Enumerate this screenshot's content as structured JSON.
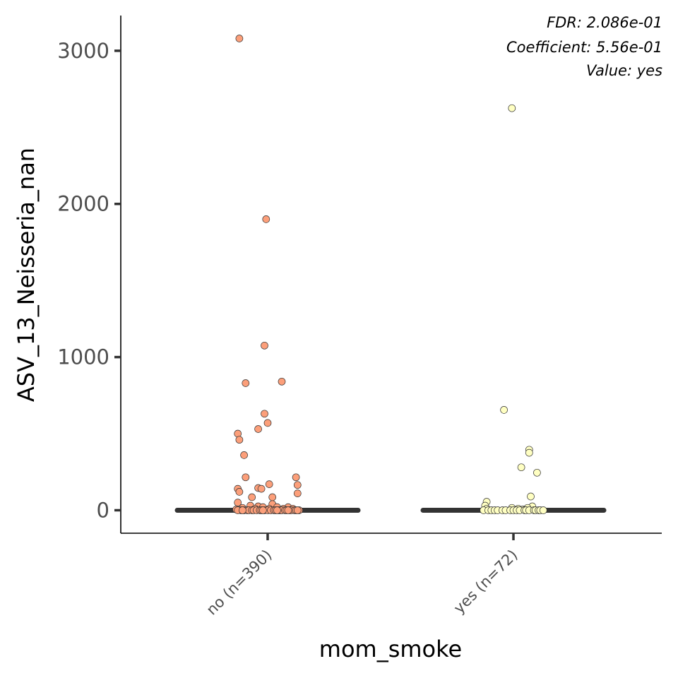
{
  "chart_data": {
    "type": "scatter",
    "title": "",
    "xlabel": "mom_smoke",
    "ylabel": "ASV_13_Neisseria_nan",
    "ylim": [
      -150,
      3230
    ],
    "yticks": [
      0,
      1000,
      2000,
      3000
    ],
    "ytick_labels": [
      "0",
      "1000",
      "2000",
      "3000"
    ],
    "grid": false,
    "legend": "none",
    "categories": [
      "no (n=390)",
      "yes (n=72)"
    ],
    "annotations": [
      "FDR: 2.086e-01",
      "Coefficient: 5.56e-01",
      "Value: yes"
    ],
    "median_color": "#333333",
    "series": [
      {
        "category": "no (n=390)",
        "color": "#fc9f7a",
        "median": 0,
        "points": [
          [
            -0.18,
            3080
          ],
          [
            -0.01,
            1900
          ],
          [
            -0.02,
            1075
          ],
          [
            -0.14,
            830
          ],
          [
            0.09,
            840
          ],
          [
            -0.02,
            630
          ],
          [
            -0.0,
            570
          ],
          [
            -0.06,
            530
          ],
          [
            -0.19,
            500
          ],
          [
            -0.18,
            460
          ],
          [
            -0.15,
            360
          ],
          [
            -0.14,
            215
          ],
          [
            0.18,
            215
          ],
          [
            0.01,
            170
          ],
          [
            0.19,
            165
          ],
          [
            -0.19,
            140
          ],
          [
            -0.06,
            145
          ],
          [
            -0.04,
            140
          ],
          [
            -0.18,
            120
          ],
          [
            0.19,
            110
          ],
          [
            -0.1,
            85
          ],
          [
            0.03,
            85
          ],
          [
            -0.19,
            50
          ],
          [
            0.03,
            40
          ],
          [
            -0.11,
            30
          ],
          [
            -0.06,
            25
          ],
          [
            -0.03,
            20
          ],
          [
            0.06,
            20
          ],
          [
            0.13,
            20
          ],
          [
            -0.16,
            15
          ],
          [
            -0.08,
            10
          ],
          [
            0.01,
            10
          ],
          [
            0.1,
            10
          ],
          [
            0.16,
            10
          ],
          [
            -0.2,
            5
          ],
          [
            -0.17,
            0
          ],
          [
            -0.15,
            0
          ],
          [
            -0.13,
            0
          ],
          [
            -0.12,
            0
          ],
          [
            -0.1,
            0
          ],
          [
            -0.09,
            0
          ],
          [
            -0.07,
            0
          ],
          [
            -0.05,
            0
          ],
          [
            -0.04,
            0
          ],
          [
            -0.02,
            0
          ],
          [
            0.0,
            0
          ],
          [
            0.02,
            0
          ],
          [
            0.04,
            0
          ],
          [
            0.05,
            0
          ],
          [
            0.07,
            0
          ],
          [
            0.08,
            0
          ],
          [
            0.09,
            0
          ],
          [
            0.11,
            0
          ],
          [
            0.12,
            0
          ],
          [
            0.14,
            0
          ],
          [
            0.15,
            0
          ],
          [
            0.17,
            0
          ],
          [
            0.18,
            0
          ],
          [
            0.2,
            0
          ],
          [
            -0.19,
            0
          ],
          [
            -0.16,
            0
          ],
          [
            -0.03,
            0
          ],
          [
            0.06,
            0
          ],
          [
            0.13,
            0
          ],
          [
            0.19,
            0
          ]
        ]
      },
      {
        "category": "yes (n=72)",
        "color": "#ffffc2",
        "median": 0,
        "points": [
          [
            -0.01,
            2625
          ],
          [
            -0.06,
            655
          ],
          [
            0.1,
            395
          ],
          [
            0.1,
            375
          ],
          [
            0.05,
            280
          ],
          [
            0.15,
            245
          ],
          [
            0.11,
            90
          ],
          [
            -0.17,
            55
          ],
          [
            -0.18,
            30
          ],
          [
            0.12,
            25
          ],
          [
            -0.01,
            15
          ],
          [
            0.09,
            15
          ],
          [
            -0.17,
            10
          ],
          [
            0.03,
            10
          ],
          [
            0.06,
            5
          ],
          [
            -0.19,
            0
          ],
          [
            -0.16,
            0
          ],
          [
            -0.14,
            0
          ],
          [
            -0.12,
            0
          ],
          [
            -0.1,
            0
          ],
          [
            -0.07,
            0
          ],
          [
            -0.05,
            0
          ],
          [
            -0.02,
            0
          ],
          [
            0.0,
            0
          ],
          [
            0.02,
            0
          ],
          [
            0.04,
            0
          ],
          [
            0.07,
            0
          ],
          [
            0.08,
            0
          ],
          [
            0.1,
            0
          ],
          [
            0.13,
            0
          ],
          [
            0.14,
            0
          ],
          [
            0.16,
            0
          ],
          [
            0.17,
            0
          ],
          [
            0.19,
            0
          ]
        ]
      }
    ]
  }
}
